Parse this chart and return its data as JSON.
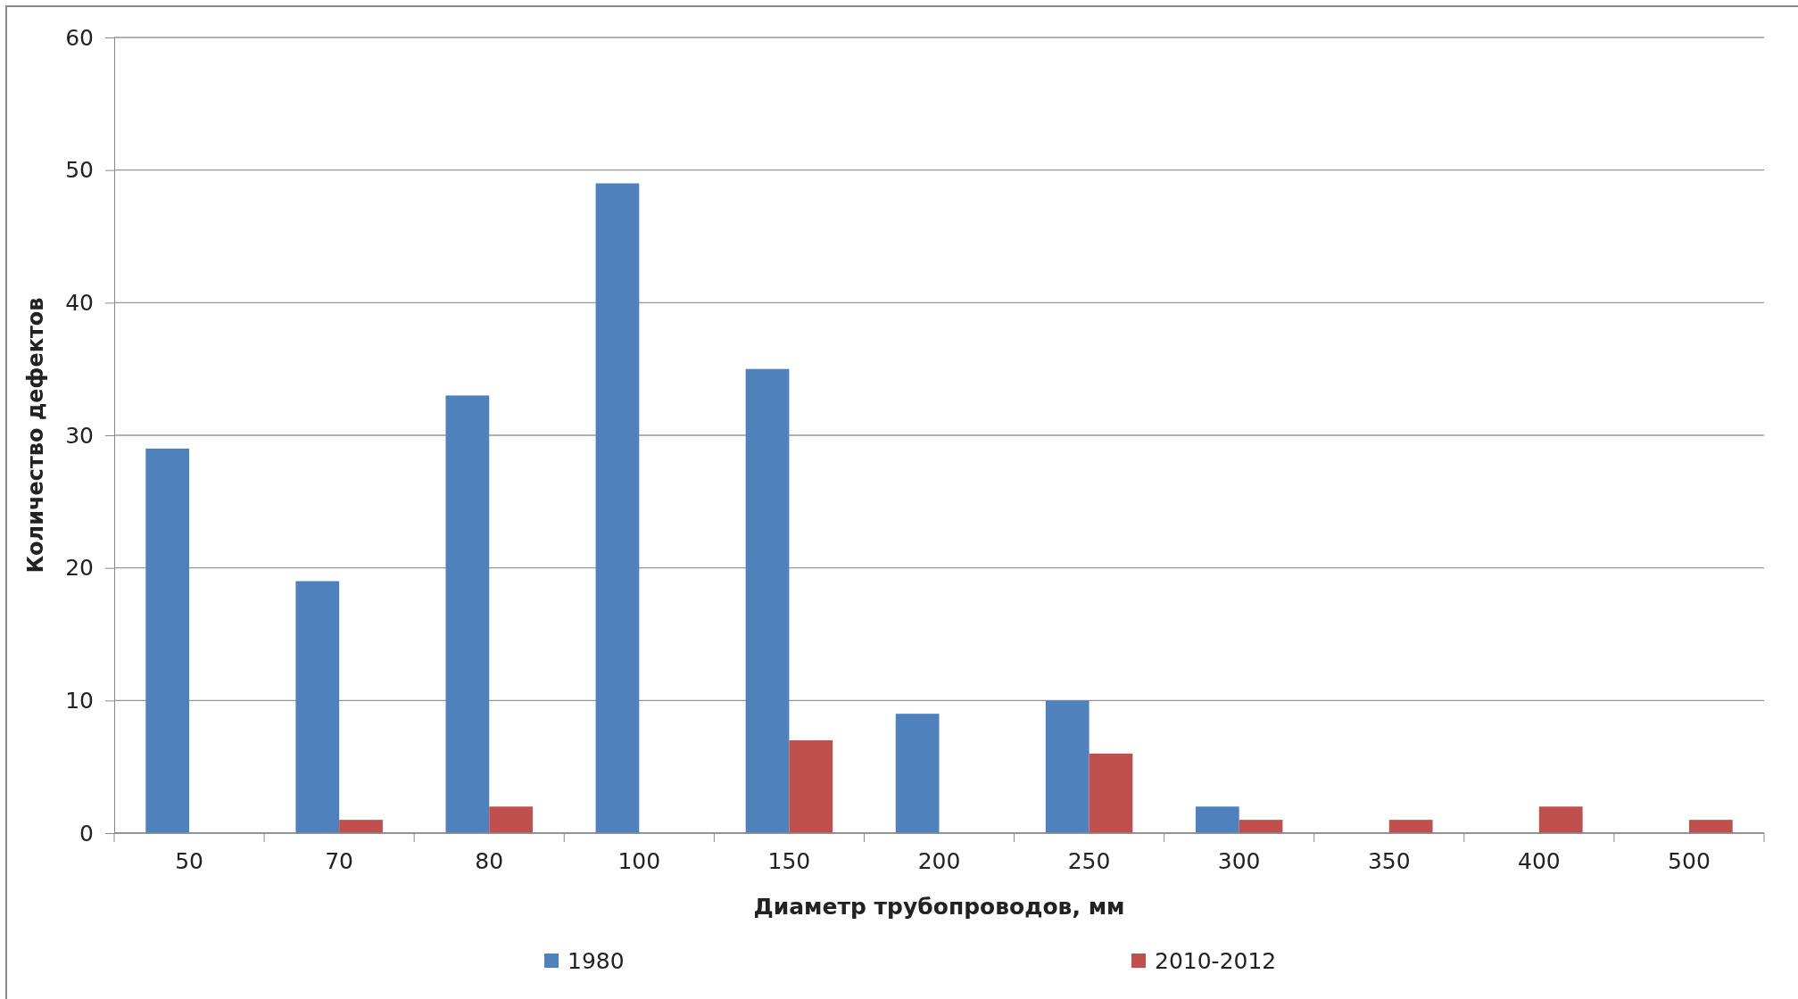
{
  "chart_data": {
    "type": "bar",
    "xlabel": "Диаметр трубопроводов, мм",
    "ylabel": "Количество дефектов",
    "categories": [
      "50",
      "70",
      "80",
      "100",
      "150",
      "200",
      "250",
      "300",
      "350",
      "400",
      "500"
    ],
    "series": [
      {
        "name": "1980",
        "color": "#4f81bd",
        "values": [
          29,
          19,
          33,
          49,
          35,
          9,
          10,
          2,
          0,
          0,
          0
        ]
      },
      {
        "name": "2010-2012",
        "color": "#c0504d",
        "values": [
          0,
          1,
          2,
          0,
          7,
          0,
          6,
          1,
          1,
          2,
          1
        ]
      }
    ],
    "ylim": [
      0,
      60
    ],
    "yticks": [
      0,
      10,
      20,
      30,
      40,
      50,
      60
    ],
    "grid": "y",
    "legend": "bottom"
  }
}
